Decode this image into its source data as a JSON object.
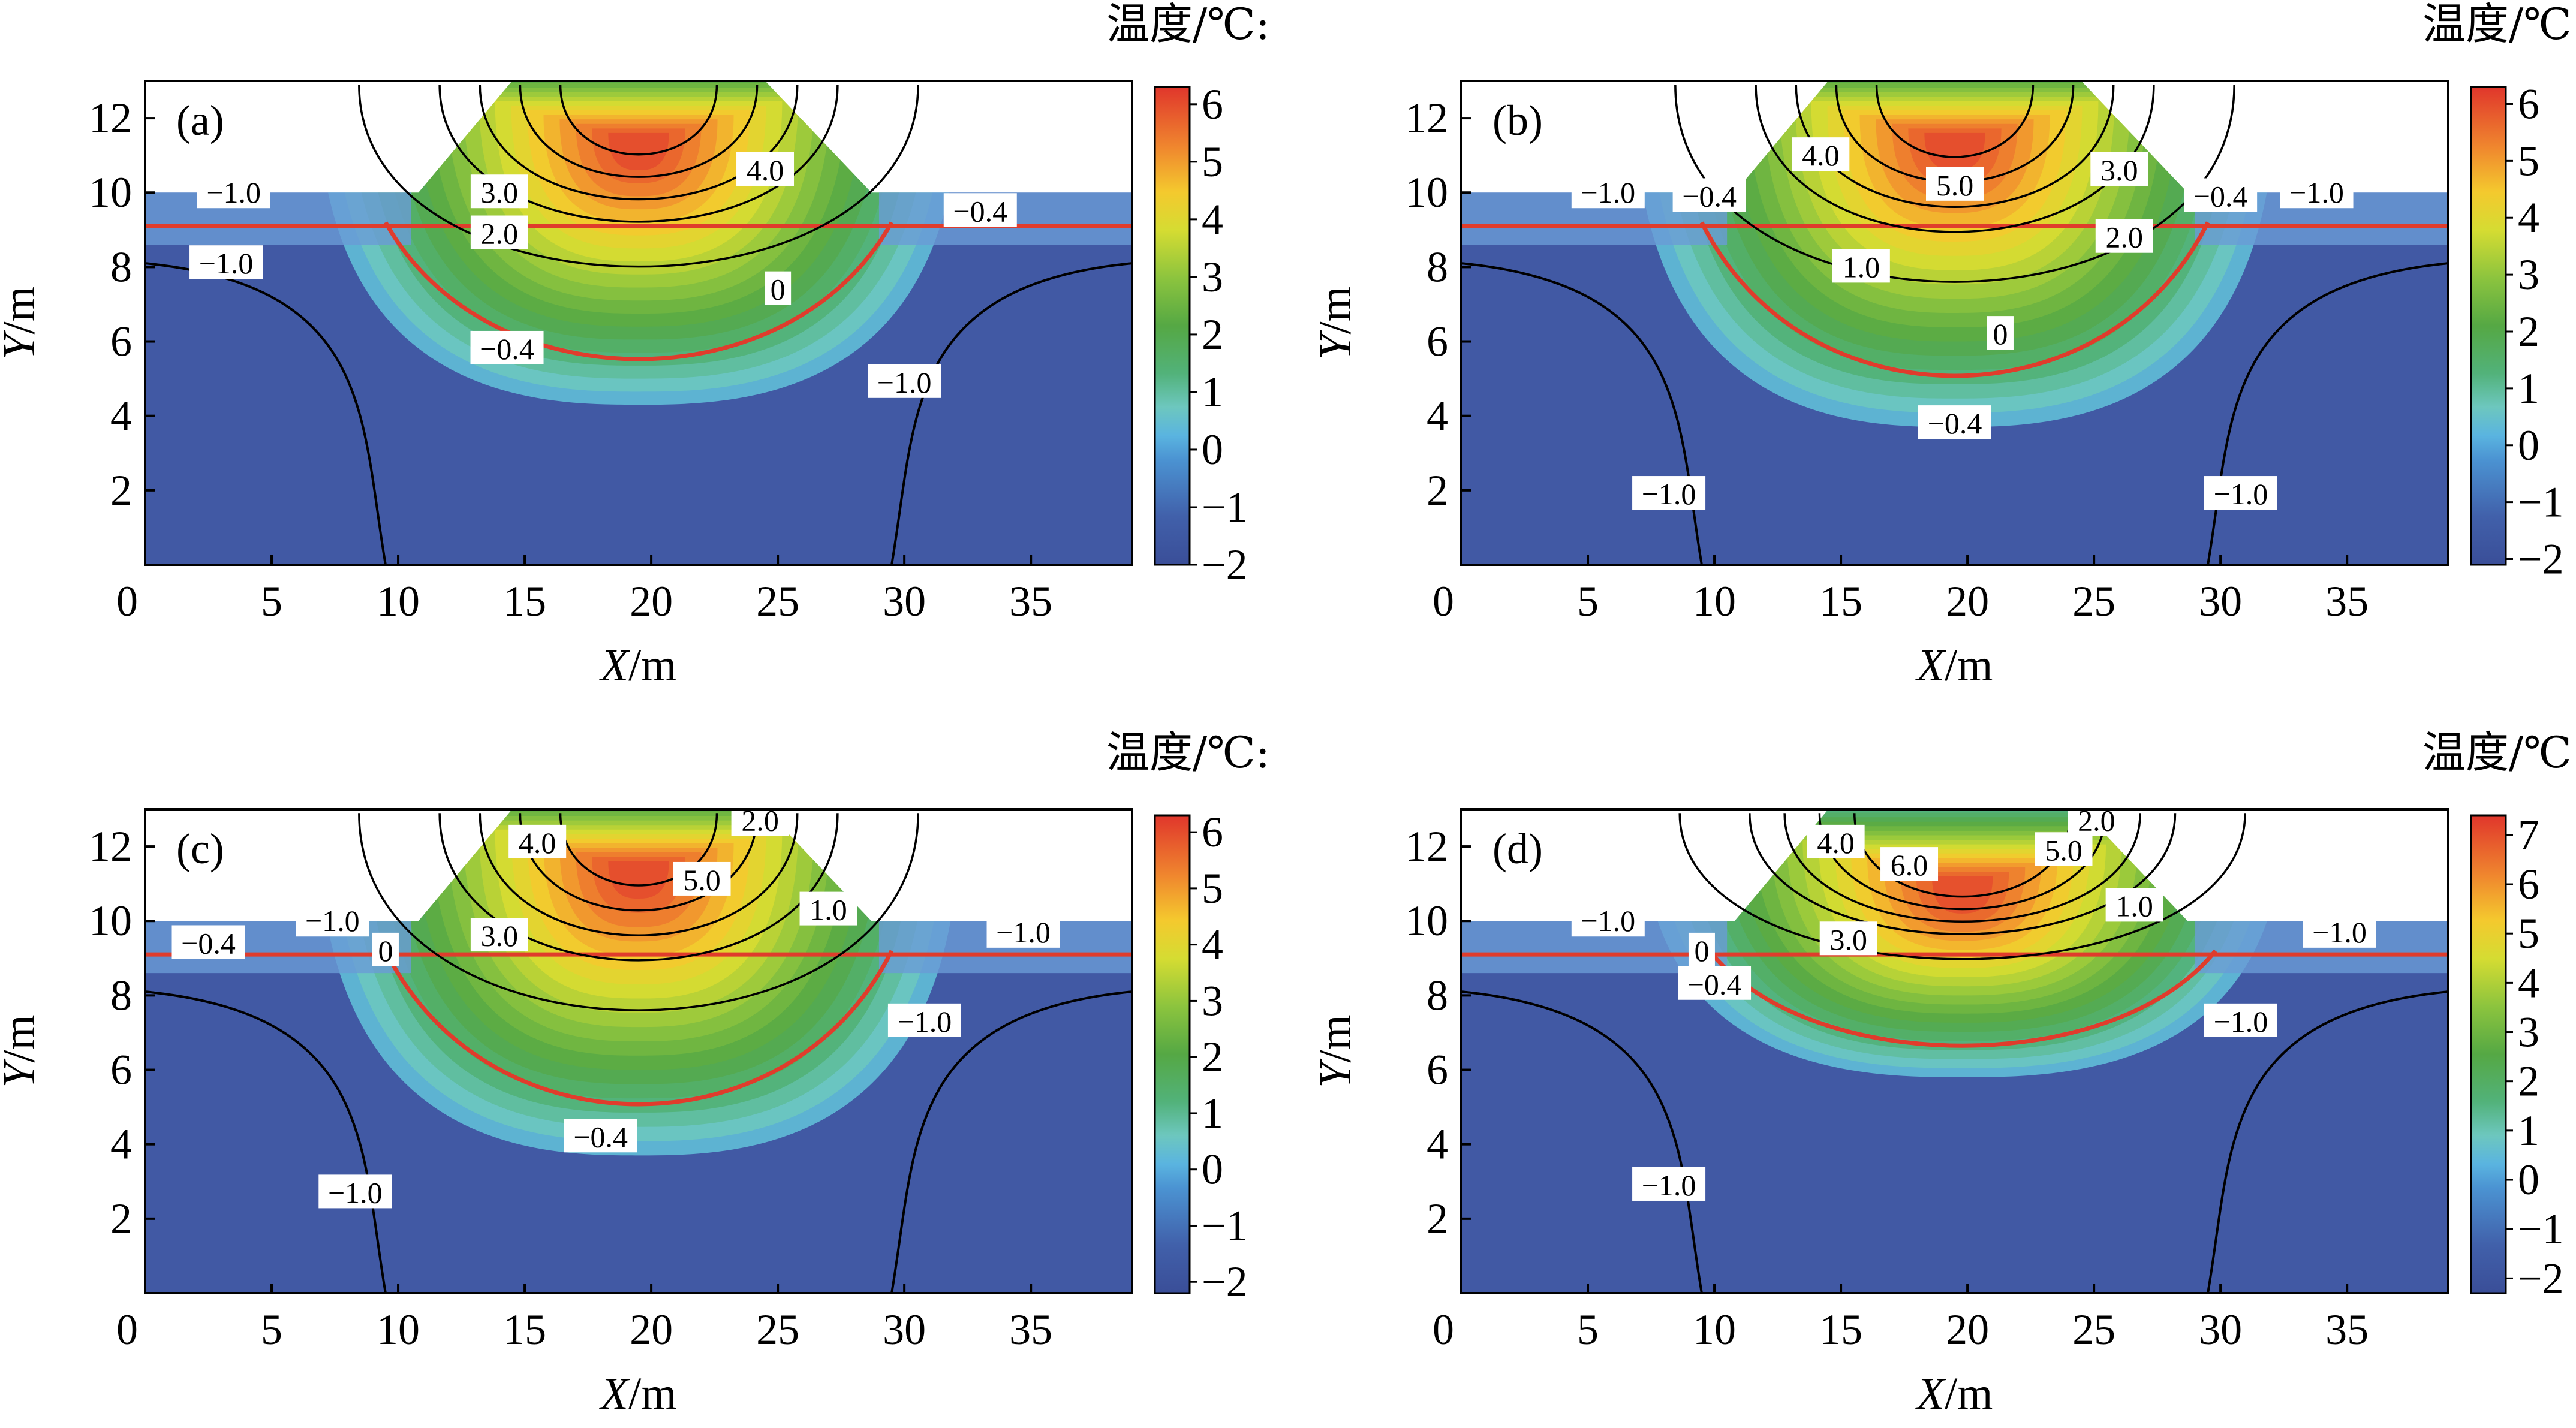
{
  "chart_data": [
    {
      "type": "heatmap",
      "panel_label": "(a)",
      "xlabel_var": "X",
      "xlabel_unit": "/m",
      "ylabel_var": "Y",
      "ylabel_unit": "/m",
      "xlim": [
        0,
        39
      ],
      "ylim": [
        0,
        13
      ],
      "x_ticks": [
        "0",
        "5",
        "10",
        "15",
        "20",
        "25",
        "30",
        "35"
      ],
      "y_ticks": [
        "2",
        "4",
        "6",
        "8",
        "10",
        "12"
      ],
      "colorbar_title": "温度/℃:",
      "colorbar_range": [
        -2,
        6.3
      ],
      "colorbar_ticks": [
        "−2",
        "−1",
        "0",
        "1",
        "2",
        "3",
        "4",
        "5",
        "6"
      ],
      "peak": {
        "x": 19.5,
        "y": 11.2,
        "value": 6
      },
      "contour_labels": [
        {
          "text": "−1.0",
          "x": 3.5,
          "y": 10.0
        },
        {
          "text": "−1.0",
          "x": 3.2,
          "y": 8.1
        },
        {
          "text": "3.0",
          "x": 14.0,
          "y": 10.0
        },
        {
          "text": "2.0",
          "x": 14.0,
          "y": 8.9
        },
        {
          "text": "4.0",
          "x": 24.5,
          "y": 10.6
        },
        {
          "text": "−0.4",
          "x": 33.0,
          "y": 9.5
        },
        {
          "text": "0",
          "x": 25.0,
          "y": 7.4
        },
        {
          "text": "−0.4",
          "x": 14.3,
          "y": 5.8
        },
        {
          "text": "−1.0",
          "x": 30.0,
          "y": 4.9
        }
      ]
    },
    {
      "type": "heatmap",
      "panel_label": "(b)",
      "xlabel_var": "X",
      "xlabel_unit": "/m",
      "ylabel_var": "Y",
      "ylabel_unit": "/m",
      "xlim": [
        0,
        39
      ],
      "ylim": [
        0,
        13
      ],
      "x_ticks": [
        "0",
        "5",
        "10",
        "15",
        "20",
        "25",
        "30",
        "35"
      ],
      "y_ticks": [
        "2",
        "4",
        "6",
        "8",
        "10",
        "12"
      ],
      "colorbar_title": "温度/℃:",
      "colorbar_range": [
        -2.1,
        6.3
      ],
      "colorbar_ticks": [
        "−2",
        "−1",
        "0",
        "1",
        "2",
        "3",
        "4",
        "5",
        "6"
      ],
      "peak": {
        "x": 19.5,
        "y": 11.2,
        "value": 6
      },
      "contour_labels": [
        {
          "text": "4.0",
          "x": 14.2,
          "y": 11.0
        },
        {
          "text": "3.0",
          "x": 26.0,
          "y": 10.6
        },
        {
          "text": "5.0",
          "x": 19.5,
          "y": 10.2
        },
        {
          "text": "−1.0",
          "x": 5.8,
          "y": 10.0
        },
        {
          "text": "−0.4",
          "x": 9.8,
          "y": 9.9
        },
        {
          "text": "−0.4",
          "x": 30.0,
          "y": 9.9
        },
        {
          "text": "−1.0",
          "x": 33.8,
          "y": 10.0
        },
        {
          "text": "2.0",
          "x": 26.2,
          "y": 8.8
        },
        {
          "text": "1.0",
          "x": 15.8,
          "y": 8.0
        },
        {
          "text": "0",
          "x": 21.3,
          "y": 6.2
        },
        {
          "text": "−0.4",
          "x": 19.5,
          "y": 3.8
        },
        {
          "text": "−1.0",
          "x": 8.2,
          "y": 1.9
        },
        {
          "text": "−1.0",
          "x": 30.8,
          "y": 1.9
        }
      ]
    },
    {
      "type": "heatmap",
      "panel_label": "(c)",
      "xlabel_var": "X",
      "xlabel_unit": "/m",
      "ylabel_var": "Y",
      "ylabel_unit": "/m",
      "xlim": [
        0,
        39
      ],
      "ylim": [
        0,
        13
      ],
      "x_ticks": [
        "0",
        "5",
        "10",
        "15",
        "20",
        "25",
        "30",
        "35"
      ],
      "y_ticks": [
        "2",
        "4",
        "6",
        "8",
        "10",
        "12"
      ],
      "colorbar_title": "温度/℃:",
      "colorbar_range": [
        -2.2,
        6.3
      ],
      "colorbar_ticks": [
        "−2",
        "−1",
        "0",
        "1",
        "2",
        "3",
        "4",
        "5",
        "6"
      ],
      "peak": {
        "x": 19.5,
        "y": 11.2,
        "value": 6
      },
      "contour_labels": [
        {
          "text": "2.0",
          "x": 24.3,
          "y": 12.7
        },
        {
          "text": "4.0",
          "x": 15.5,
          "y": 12.1
        },
        {
          "text": "5.0",
          "x": 22.0,
          "y": 11.1
        },
        {
          "text": "1.0",
          "x": 27.0,
          "y": 10.3
        },
        {
          "text": "3.0",
          "x": 14.0,
          "y": 9.6
        },
        {
          "text": "−1.0",
          "x": 7.4,
          "y": 10.0
        },
        {
          "text": "−0.4",
          "x": 2.5,
          "y": 9.4
        },
        {
          "text": "0",
          "x": 9.5,
          "y": 9.2
        },
        {
          "text": "−1.0",
          "x": 34.7,
          "y": 9.7
        },
        {
          "text": "−1.0",
          "x": 30.8,
          "y": 7.3
        },
        {
          "text": "−0.4",
          "x": 18.0,
          "y": 4.2
        },
        {
          "text": "−1.0",
          "x": 8.3,
          "y": 2.7
        }
      ]
    },
    {
      "type": "heatmap",
      "panel_label": "(d)",
      "xlabel_var": "X",
      "xlabel_unit": "/m",
      "ylabel_var": "Y",
      "ylabel_unit": "/m",
      "xlim": [
        0,
        39
      ],
      "ylim": [
        0,
        13
      ],
      "x_ticks": [
        "0",
        "5",
        "10",
        "15",
        "20",
        "25",
        "30",
        "35"
      ],
      "y_ticks": [
        "2",
        "4",
        "6",
        "8",
        "10",
        "12"
      ],
      "colorbar_title": "温度/℃:",
      "colorbar_range": [
        -2.3,
        7.4
      ],
      "colorbar_ticks": [
        "−2",
        "−1",
        "0",
        "1",
        "2",
        "3",
        "4",
        "5",
        "6",
        "7"
      ],
      "peak": {
        "x": 19.8,
        "y": 10.8,
        "value": 7
      },
      "contour_labels": [
        {
          "text": "2.0",
          "x": 25.1,
          "y": 12.7
        },
        {
          "text": "4.0",
          "x": 14.8,
          "y": 12.1
        },
        {
          "text": "6.0",
          "x": 17.7,
          "y": 11.5
        },
        {
          "text": "5.0",
          "x": 23.8,
          "y": 11.9
        },
        {
          "text": "1.0",
          "x": 26.6,
          "y": 10.4
        },
        {
          "text": "3.0",
          "x": 15.3,
          "y": 9.5
        },
        {
          "text": "−1.0",
          "x": 5.8,
          "y": 10.0
        },
        {
          "text": "0",
          "x": 9.5,
          "y": 9.2
        },
        {
          "text": "−0.4",
          "x": 10.0,
          "y": 8.3
        },
        {
          "text": "−1.0",
          "x": 34.7,
          "y": 9.7
        },
        {
          "text": "−1.0",
          "x": 30.8,
          "y": 7.3
        },
        {
          "text": "−1.0",
          "x": 8.2,
          "y": 2.9
        }
      ]
    }
  ]
}
